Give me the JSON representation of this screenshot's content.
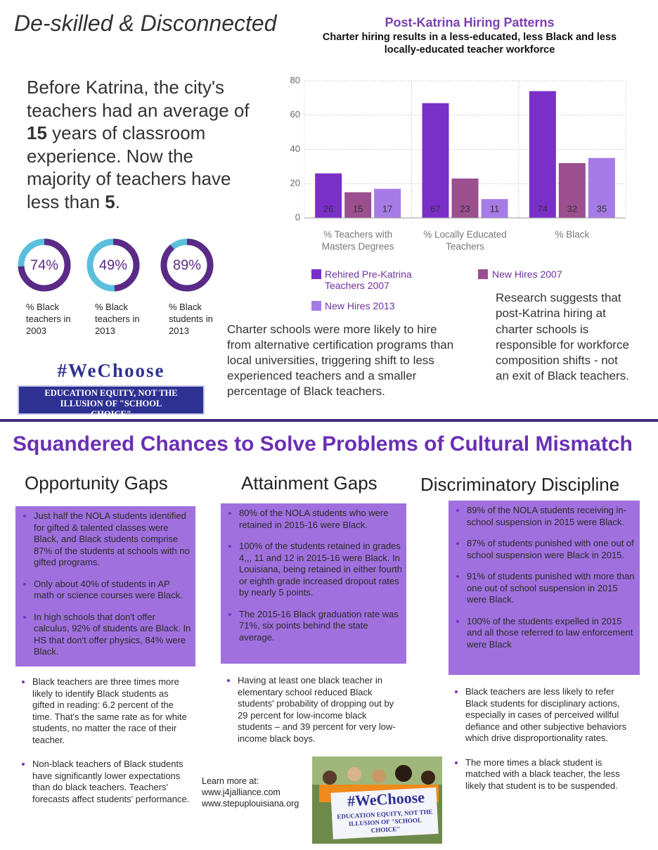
{
  "header": {
    "title": "De-skilled & Disconnected"
  },
  "intro": {
    "segments": [
      "Before Katrina, the city's teachers had an average of ",
      "15",
      " years of classroom experience. Now the majority of teachers have less than ",
      "5",
      "."
    ]
  },
  "donuts": [
    {
      "value": 74,
      "label": "74%",
      "caption": "% Black teachers in 2003"
    },
    {
      "value": 49,
      "label": "49%",
      "caption": "% Black teachers in 2013"
    },
    {
      "value": 89,
      "label": "89%",
      "caption": "% Black students in 2013"
    }
  ],
  "logo": {
    "tag": "#WeChoose",
    "slogan": "EDUCATION EQUITY, NOT THE ILLUSION OF \"SCHOOL CHOICE\""
  },
  "chart_data": {
    "type": "bar",
    "title": "Post-Katrina Hiring Patterns",
    "subtitle": "Charter hiring results in a less-educated, less Black and less locally-educated teacher workforce",
    "categories": [
      "% Teachers with Masters Degrees",
      "% Locally Educated Teachers",
      "% Black"
    ],
    "series": [
      {
        "name": "Rehired Pre-Katrina Teachers 2007",
        "color": "#7b2fc9",
        "values": [
          26,
          67,
          74
        ]
      },
      {
        "name": "New Hires 2007",
        "color": "#9c4f8f",
        "values": [
          15,
          23,
          32
        ]
      },
      {
        "name": "New Hires 2013",
        "color": "#a67be6",
        "values": [
          17,
          11,
          35
        ]
      }
    ],
    "ylim": [
      0,
      80
    ],
    "yticks": [
      0,
      20,
      40,
      60,
      80
    ],
    "grid": true
  },
  "captions": {
    "charter": "Charter schools were more likely to hire from alternative certification programs than local universities, triggering shift to less experienced teachers and a smaller percentage of Black teachers.",
    "research": "Research suggests that post-Katrina hiring at charter schools is responsible for workforce composition shifts - not an  exit of Black teachers."
  },
  "section": {
    "title": "Squandered Chances to Solve Problems of Cultural Mismatch"
  },
  "columns": [
    {
      "heading": "Opportunity Gaps",
      "box_items": [
        "Just half the NOLA students identified for gifted & talented classes were Black, and Black students comprise 87% of the students at schools with no gifted programs.",
        "Only about 40% of students in AP math or science courses were Black.",
        "In high schools that don't offer calculus, 92% of students are Black. In HS that don't offer physics, 84% were Black."
      ],
      "items": [
        "Black teachers are three times more likely to identify Black students as gifted in reading: 6.2 percent of the time. That's the same rate as for white students, no matter the race of their teacher.",
        "Non-black teachers of Black students have significantly lower expectations than do black teachers. Teachers' forecasts affect students' performance."
      ]
    },
    {
      "heading": "Attainment Gaps",
      "box_items": [
        "80% of the NOLA students who were retained in 2015-16 were Black.",
        "100% of the students retained in grades 4,,, 11 and 12 in 2015-16 were Black. In Louisiana, being retained in either fourth or eighth grade increased dropout rates by nearly 5 points.",
        "The 2015-16 Black graduation rate was 71%, six points behind the state average."
      ],
      "items": [
        "Having at least one black teacher in elementary school reduced Black students' probability of dropping out by 29 percent for low-income black students – and 39 percent for very low-income black boys."
      ]
    },
    {
      "heading": "Discriminatory Discipline",
      "box_items": [
        "89% of the NOLA students receiving in-school suspension in 2015 were Black.",
        "87% of students punished with one out of school suspension were Black in 2015.",
        "91% of students punished with more than one out of school suspension in 2015 were Black.",
        "100% of the students expelled in 2015 and all those referred to law enforcement were Black"
      ],
      "items": [
        "Black teachers are less likely to refer Black students for disciplinary actions, especially in cases of perceived willful defiance and other subjective behaviors which drive disproportionality rates.",
        "The more times a black student is matched with a black teacher, the less likely that student is to be suspended."
      ]
    }
  ],
  "learn_more": {
    "label": "Learn more at:",
    "links": [
      "www.j4jalliance.com",
      "www.stepuplouisiana.org"
    ]
  },
  "photo": {
    "banner": "#WeChoose",
    "slogan": "EDUCATION EQUITY, NOT THE ILLUSION OF \"SCHOOL CHOICE\""
  }
}
